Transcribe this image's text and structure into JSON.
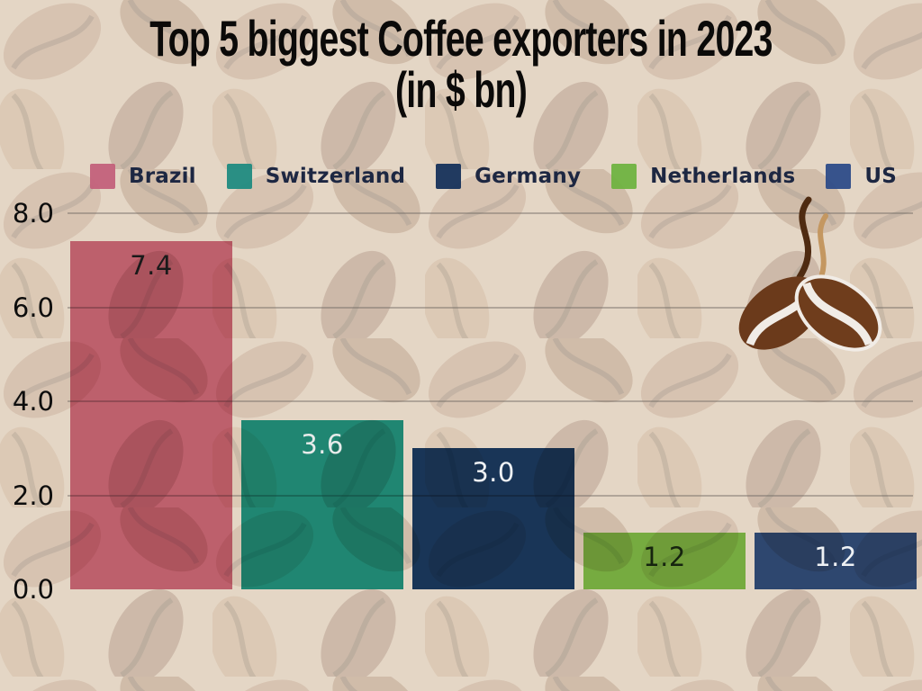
{
  "title": {
    "line1": "Top 5 biggest Coffee exporters in 2023",
    "line2": "(in $ bn)"
  },
  "chart_data": {
    "type": "bar",
    "title": "Top 5 biggest Coffee exporters in 2023 (in $ bn)",
    "unit": "$ bn",
    "categories": [
      "Brazil",
      "Switzerland",
      "Germany",
      "Netherlands",
      "US"
    ],
    "values": [
      7.4,
      3.6,
      3.0,
      1.2,
      1.2
    ],
    "value_labels": [
      "7.4",
      "3.6",
      "3.0",
      "1.2",
      "1.2"
    ],
    "value_label_colors": [
      "#1a1a1a",
      "#e7ebea",
      "#eef1f4",
      "#16240f",
      "#eef1f4"
    ],
    "bar_fills": [
      "#d4728c",
      "#23a093",
      "#1c3f70",
      "#84cc52",
      "#33548f"
    ],
    "ylim": [
      0,
      8
    ],
    "yticks": [
      {
        "label": "8.0",
        "value": 8
      },
      {
        "label": "6.0",
        "value": 6
      },
      {
        "label": "4.0",
        "value": 4
      },
      {
        "label": "2.0",
        "value": 2
      },
      {
        "label": "0.0",
        "value": 0
      }
    ],
    "grid": true,
    "legend_position": "top",
    "background": "faded coffee beans photo"
  },
  "legend": {
    "items": [
      {
        "label": "Brazil",
        "color": "#c2607a"
      },
      {
        "label": "Switzerland",
        "color": "#1e8a80"
      },
      {
        "label": "Germany",
        "color": "#143059"
      },
      {
        "label": "Netherlands",
        "color": "#6db340"
      },
      {
        "label": "US",
        "color": "#2c4a88"
      }
    ]
  },
  "icon": {
    "name": "coffee-beans-with-steam"
  },
  "colors": {
    "title_text": "#0b0a09",
    "legend_text": "#1d2742",
    "tick_text": "#0d0d0d",
    "gridline": "#706a64",
    "bean_dark": "#6b3a1b",
    "steam_dark": "#4f2b11",
    "steam_light": "#c49760"
  }
}
